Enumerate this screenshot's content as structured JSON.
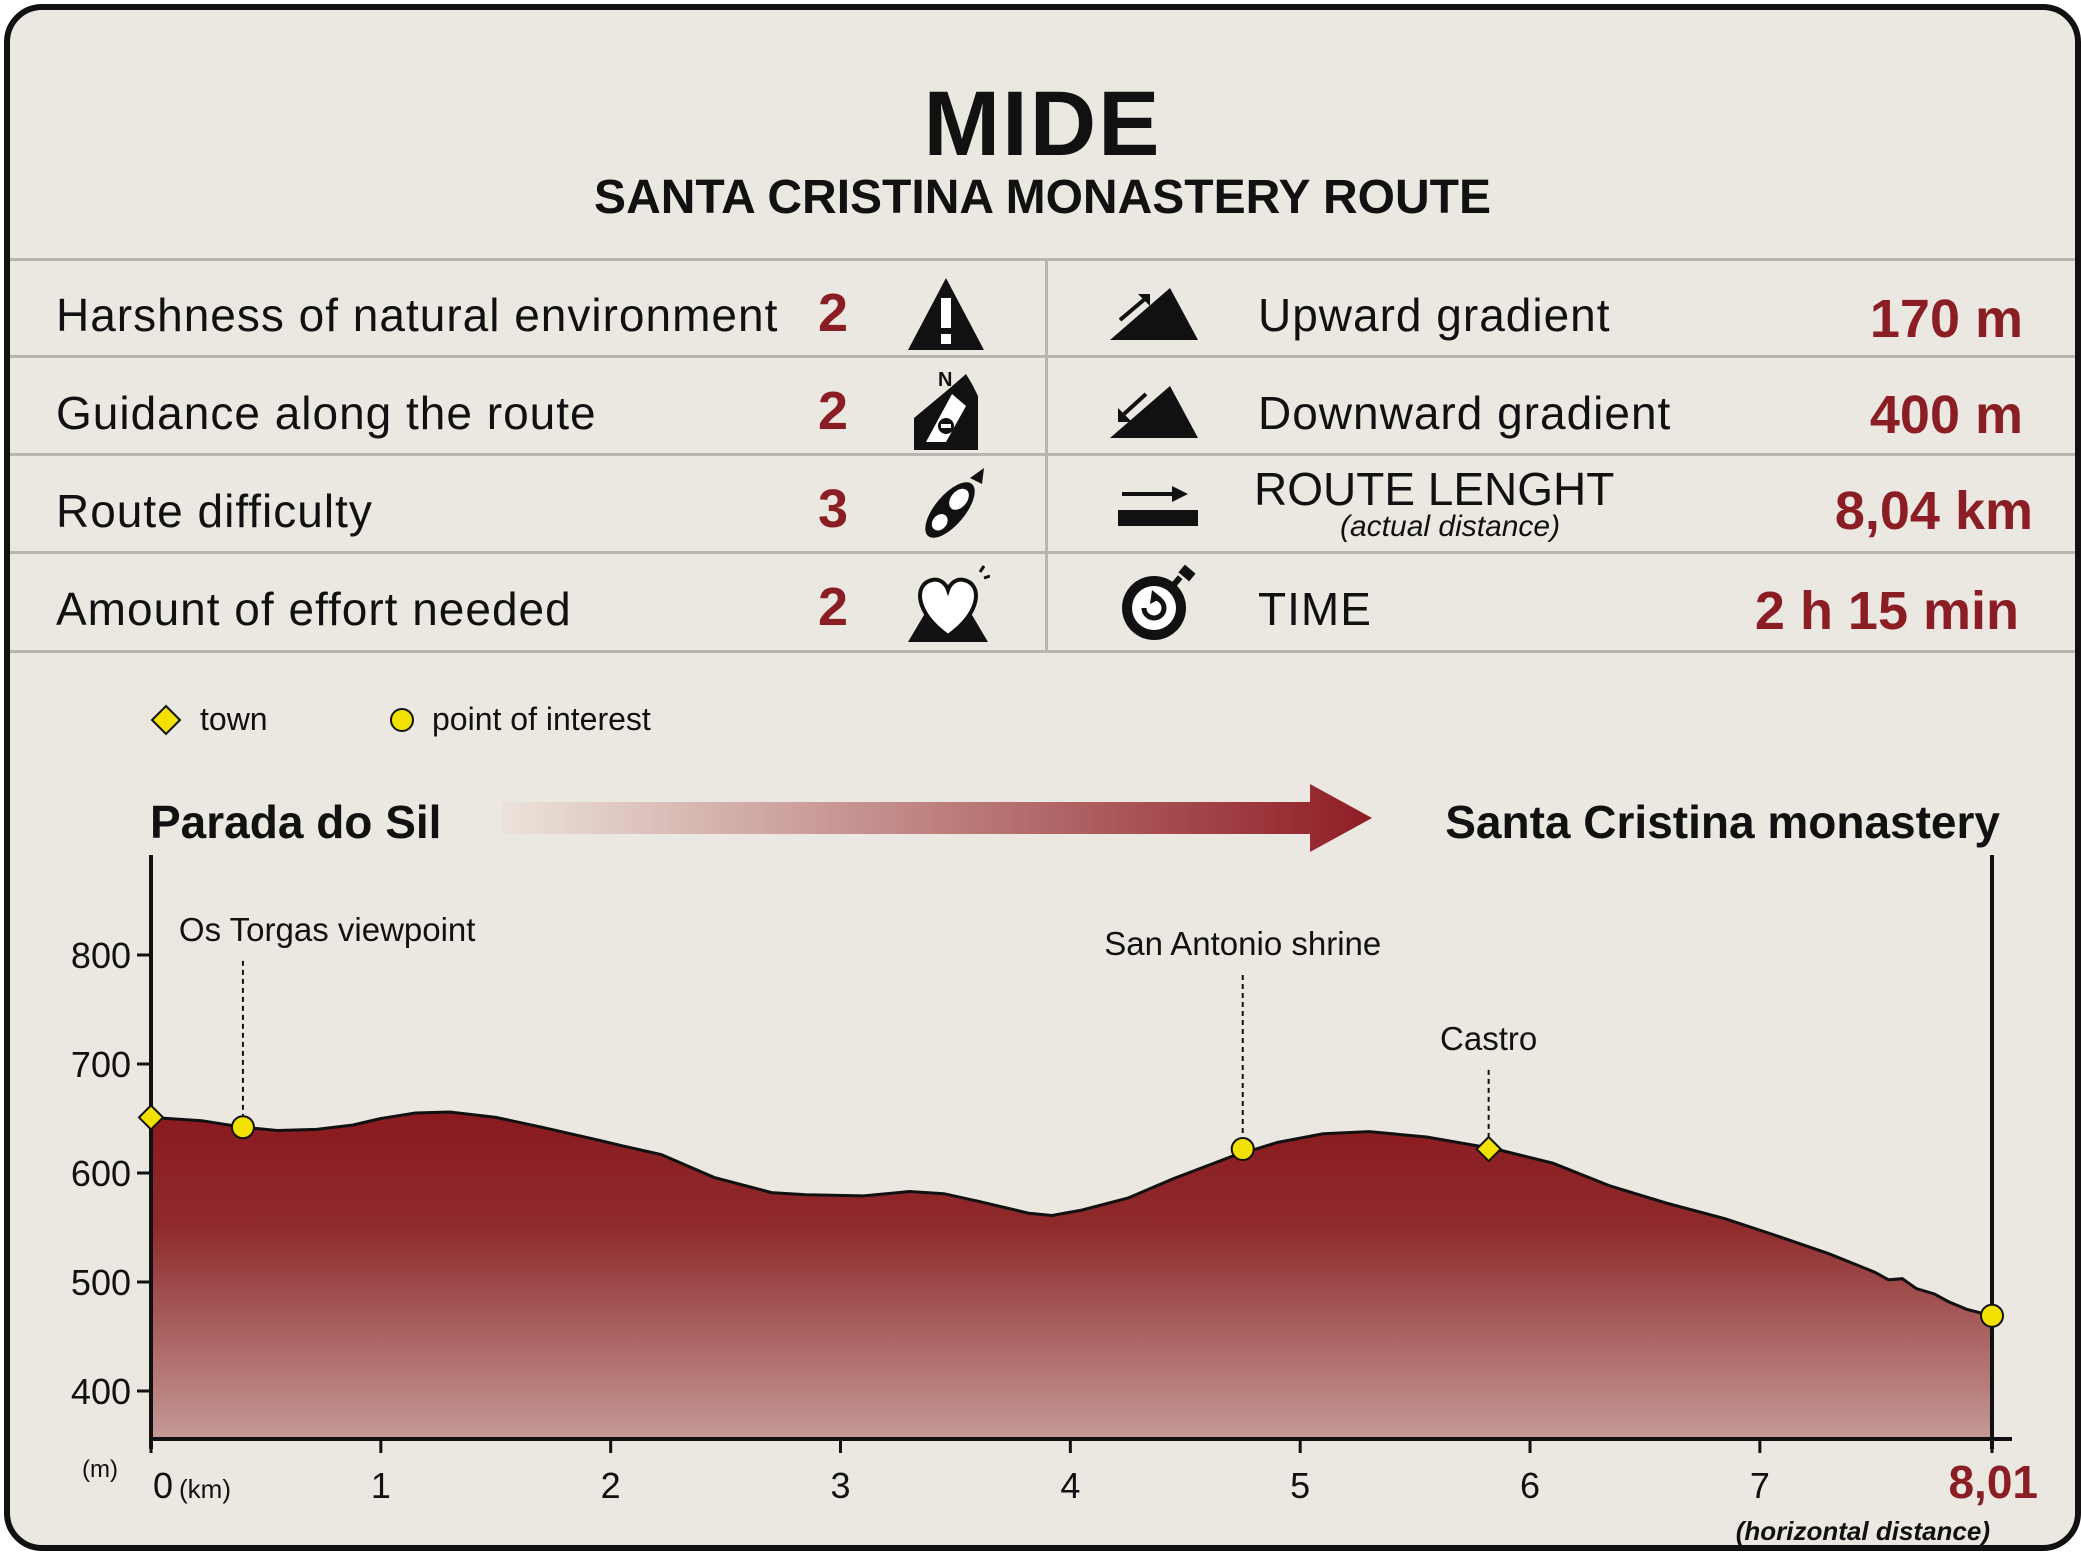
{
  "header": {
    "title": "MIDE",
    "subtitle": "SANTA CRISTINA MONASTERY ROUTE"
  },
  "mide": {
    "left": [
      {
        "label": "Harshness of natural environment",
        "score": "2",
        "icon": "warning-icon"
      },
      {
        "label": "Guidance along the route",
        "score": "2",
        "icon": "compass-orientation-icon"
      },
      {
        "label": "Route difficulty",
        "score": "3",
        "icon": "footprint-icon"
      },
      {
        "label": "Amount of effort needed",
        "score": "2",
        "icon": "heart-effort-icon"
      }
    ],
    "right": [
      {
        "label": "Upward gradient",
        "value": "170 m",
        "icon": "upward-gradient-icon"
      },
      {
        "label": "Downward gradient",
        "value": "400 m",
        "icon": "downward-gradient-icon"
      },
      {
        "label": "ROUTE LENGHT",
        "sublabel": "(actual distance)",
        "value": "8,04 km",
        "icon": "route-length-icon"
      },
      {
        "label": "TIME",
        "value": "2 h 15 min",
        "icon": "stopwatch-icon"
      }
    ]
  },
  "chart_data": {
    "type": "area",
    "start_label": "Parada do Sil",
    "end_label": "Santa Cristina monastery",
    "legend": [
      "town",
      "point of interest"
    ],
    "ylabel": "(m)",
    "xunit": "(km)",
    "xlabel": "(horizontal distance)",
    "ylim": [
      400,
      880
    ],
    "xlim": [
      0,
      8.01
    ],
    "yticks": [
      "400",
      "500",
      "600",
      "700",
      "800"
    ],
    "xticks": [
      {
        "x": 0,
        "label": "0"
      },
      {
        "x": 1,
        "label": "1"
      },
      {
        "x": 2,
        "label": "2"
      },
      {
        "x": 3,
        "label": "3"
      },
      {
        "x": 4,
        "label": "4"
      },
      {
        "x": 5,
        "label": "5"
      },
      {
        "x": 6,
        "label": "6"
      },
      {
        "x": 7,
        "label": "7"
      },
      {
        "x": 8.01,
        "label": "8,01"
      }
    ],
    "profile": [
      [
        0,
        651
      ],
      [
        0.22,
        648
      ],
      [
        0.4,
        642
      ],
      [
        0.55,
        639
      ],
      [
        0.72,
        640
      ],
      [
        0.88,
        644
      ],
      [
        1.0,
        650
      ],
      [
        1.15,
        655
      ],
      [
        1.3,
        656
      ],
      [
        1.5,
        651
      ],
      [
        1.7,
        642
      ],
      [
        1.95,
        630
      ],
      [
        2.05,
        625
      ],
      [
        2.22,
        617
      ],
      [
        2.45,
        596
      ],
      [
        2.7,
        582
      ],
      [
        2.85,
        580
      ],
      [
        3.1,
        579
      ],
      [
        3.3,
        583
      ],
      [
        3.45,
        581
      ],
      [
        3.6,
        574
      ],
      [
        3.82,
        563
      ],
      [
        3.92,
        561
      ],
      [
        4.05,
        566
      ],
      [
        4.25,
        577
      ],
      [
        4.45,
        595
      ],
      [
        4.7,
        615
      ],
      [
        4.9,
        628
      ],
      [
        5.1,
        636
      ],
      [
        5.3,
        638
      ],
      [
        5.55,
        633
      ],
      [
        5.85,
        622
      ],
      [
        6.1,
        609
      ],
      [
        6.35,
        588
      ],
      [
        6.6,
        572
      ],
      [
        6.85,
        558
      ],
      [
        7.05,
        544
      ],
      [
        7.3,
        526
      ],
      [
        7.5,
        509
      ],
      [
        7.56,
        502
      ],
      [
        7.62,
        503
      ],
      [
        7.68,
        494
      ],
      [
        7.76,
        489
      ],
      [
        7.82,
        482
      ],
      [
        7.9,
        475
      ],
      [
        8.01,
        469
      ]
    ],
    "points": [
      {
        "name": "",
        "x": 0,
        "y": 651,
        "kind": "town"
      },
      {
        "name": "Os Torgas viewpoint",
        "x": 0.4,
        "y": 642,
        "kind": "poi",
        "label_y": 813
      },
      {
        "name": "San Antonio shrine",
        "x": 4.75,
        "y": 622,
        "kind": "poi",
        "label_y": 800
      },
      {
        "name": "Castro",
        "x": 5.82,
        "y": 622,
        "kind": "town",
        "label_y": 713
      },
      {
        "name": "",
        "x": 8.01,
        "y": 469,
        "kind": "poi"
      }
    ]
  }
}
